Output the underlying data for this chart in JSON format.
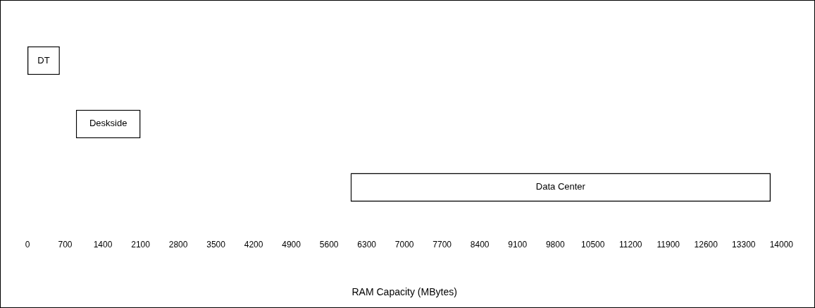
{
  "chart_data": {
    "type": "bar",
    "orientation": "horizontal",
    "xlabel": "RAM Capacity (MBytes)",
    "categories": [
      "DT",
      "Deskside",
      "Data Center"
    ],
    "values": [
      600,
      1200,
      7800
    ],
    "base": [
      0,
      900,
      6000
    ],
    "color": "#ffffff",
    "xlim": [
      0,
      14000
    ],
    "xticks": [
      0,
      700,
      1400,
      2100,
      2800,
      3500,
      4200,
      4900,
      5600,
      6300,
      7000,
      7700,
      8400,
      9100,
      9800,
      10500,
      11200,
      11900,
      12600,
      13300,
      14000
    ],
    "tick_labels": "x",
    "grid": false,
    "legend": false
  }
}
